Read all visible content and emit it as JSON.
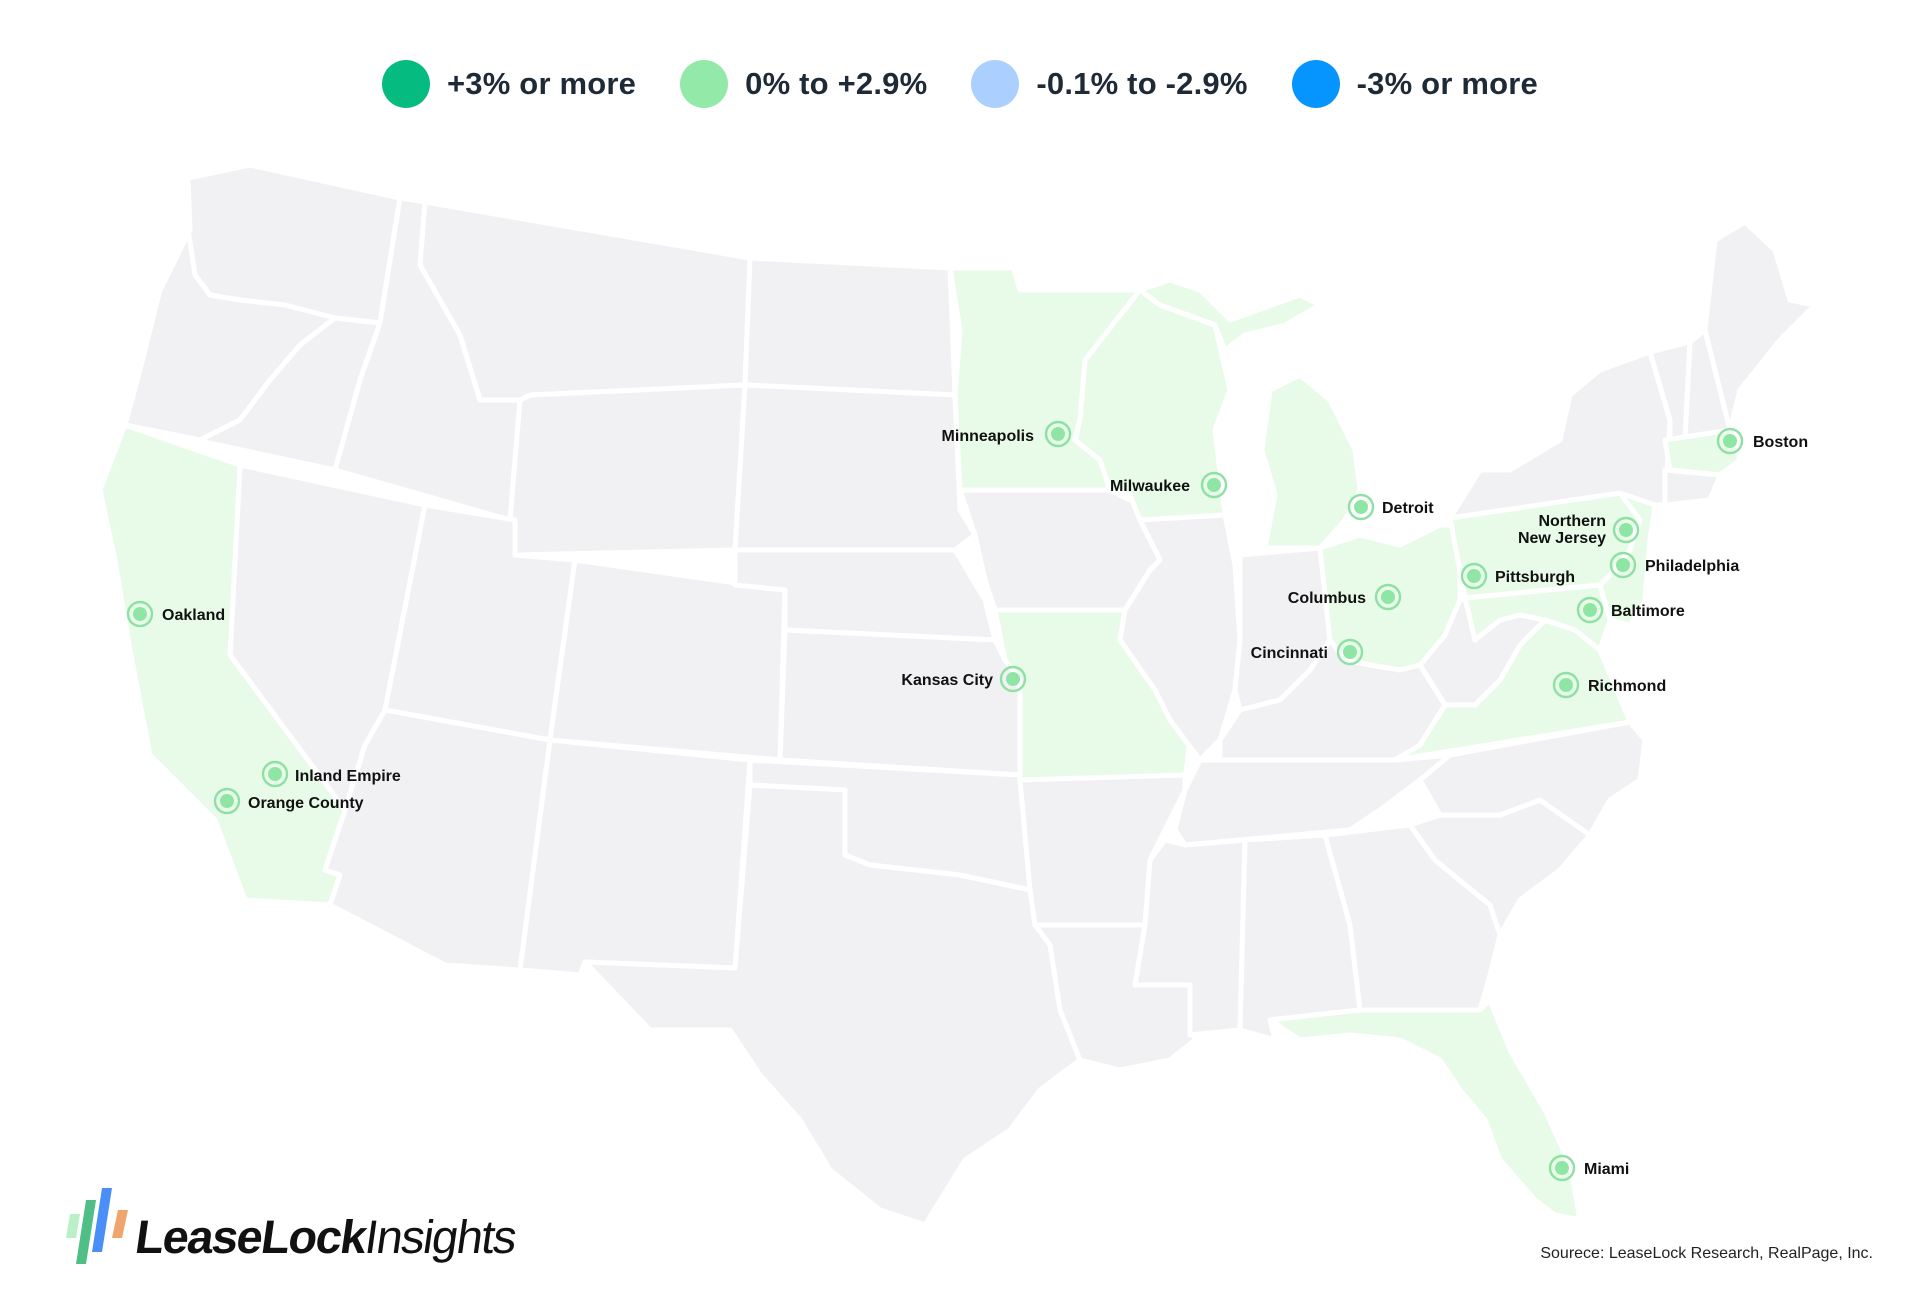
{
  "legend": [
    {
      "label": "+3% or more",
      "color": "#06bb80"
    },
    {
      "label": "0% to +2.9%",
      "color": "#93eaa8"
    },
    {
      "label": "-0.1% to -2.9%",
      "color": "#abd0ff"
    },
    {
      "label": "-3% or more",
      "color": "#0694ff"
    }
  ],
  "colors": {
    "state_default": "#f1f1f3",
    "state_highlight": "#e8fbe8",
    "border": "#ffffff",
    "city_marker": "#8fe6a4"
  },
  "highlighted_states": [
    "California",
    "Minnesota",
    "Wisconsin",
    "Michigan",
    "Ohio",
    "Missouri",
    "Pennsylvania",
    "Virginia",
    "Maryland",
    "New Jersey",
    "Massachusetts",
    "Florida"
  ],
  "cities": [
    {
      "name": "Oakland",
      "category": "0% to +2.9%"
    },
    {
      "name": "Inland Empire",
      "category": "0% to +2.9%"
    },
    {
      "name": "Orange County",
      "category": "0% to +2.9%"
    },
    {
      "name": "Minneapolis",
      "category": "0% to +2.9%"
    },
    {
      "name": "Milwaukee",
      "category": "0% to +2.9%"
    },
    {
      "name": "Kansas City",
      "category": "0% to +2.9%"
    },
    {
      "name": "Detroit",
      "category": "0% to +2.9%"
    },
    {
      "name": "Columbus",
      "category": "0% to +2.9%"
    },
    {
      "name": "Cincinnati",
      "category": "0% to +2.9%"
    },
    {
      "name": "Pittsburgh",
      "category": "0% to +2.9%"
    },
    {
      "name": "Northern",
      "category": "0% to +2.9%"
    },
    {
      "name": "New Jersey",
      "category": "0% to +2.9%"
    },
    {
      "name": "Philadelphia",
      "category": "0% to +2.9%"
    },
    {
      "name": "Baltimore",
      "category": "0% to +2.9%"
    },
    {
      "name": "Richmond",
      "category": "0% to +2.9%"
    },
    {
      "name": "Boston",
      "category": "0% to +2.9%"
    },
    {
      "name": "Miami",
      "category": "0% to +2.9%"
    }
  ],
  "logo": {
    "brand": "LeaseLock",
    "product": "Insights",
    "icon": "bar-chart-logo-icon"
  },
  "source": "Sourece: LeaseLock Research, RealPage, Inc."
}
